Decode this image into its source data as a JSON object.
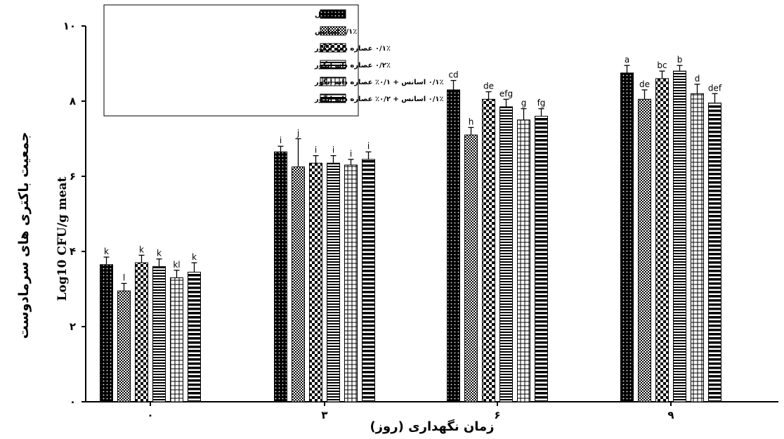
{
  "chart_data": {
    "type": "bar",
    "title": "",
    "xlabel": "زمان نگهداری (روز)",
    "ylabel": "جمعیت باکتری های سرمادوست",
    "ylabel_unit": "Log10 CFU/g meat",
    "categories": [
      "۰",
      "۳",
      "۶",
      "۹"
    ],
    "y_ticks": [
      {
        "value": 0,
        "label": "۰"
      },
      {
        "value": 2,
        "label": "۲"
      },
      {
        "value": 4,
        "label": "۴"
      },
      {
        "value": 6,
        "label": "۶"
      },
      {
        "value": 8,
        "label": "۸"
      },
      {
        "value": 10,
        "label": "۱۰"
      }
    ],
    "ylim": [
      0,
      10
    ],
    "grid": false,
    "legend_position": "top-left",
    "series": [
      {
        "name": "کنترل",
        "pattern": "dots",
        "values": [
          3.65,
          6.65,
          8.3,
          8.75
        ],
        "errors": [
          0.2,
          0.15,
          0.25,
          0.2
        ],
        "letters": [
          "k",
          "i",
          "cd",
          "a"
        ]
      },
      {
        "name": "۰/۱٪ اسانس",
        "pattern": "check",
        "values": [
          2.95,
          6.25,
          7.1,
          8.05
        ],
        "errors": [
          0.2,
          0.75,
          0.2,
          0.25
        ],
        "letters": [
          "l",
          "j",
          "h",
          "de"
        ]
      },
      {
        "name": "۰/۱٪ عصاره دانه انگور",
        "pattern": "bigcheck",
        "values": [
          3.7,
          6.35,
          8.05,
          8.6
        ],
        "errors": [
          0.2,
          0.2,
          0.2,
          0.2
        ],
        "letters": [
          "k",
          "i",
          "de",
          "bc"
        ]
      },
      {
        "name": "۰/۲٪ عصاره دانه انگور",
        "pattern": "hstripe",
        "values": [
          3.6,
          6.35,
          7.85,
          8.8
        ],
        "errors": [
          0.2,
          0.2,
          0.2,
          0.15
        ],
        "letters": [
          "k",
          "i",
          "efg",
          "b"
        ]
      },
      {
        "name": "۰/۱٪ اسانس + ۰/۱٪ عصاره دانه انگور",
        "pattern": "grid",
        "values": [
          3.3,
          6.3,
          7.5,
          8.2
        ],
        "errors": [
          0.2,
          0.15,
          0.3,
          0.25
        ],
        "letters": [
          "kl",
          "i",
          "g",
          "d"
        ]
      },
      {
        "name": "۰/۱٪ اسانس + ۰/۲٪ عصاره دانه انگور",
        "pattern": "thickstripe",
        "values": [
          3.45,
          6.45,
          7.6,
          7.95
        ],
        "errors": [
          0.25,
          0.2,
          0.2,
          0.25
        ],
        "letters": [
          "k",
          "i",
          "fg",
          "def"
        ]
      }
    ]
  }
}
